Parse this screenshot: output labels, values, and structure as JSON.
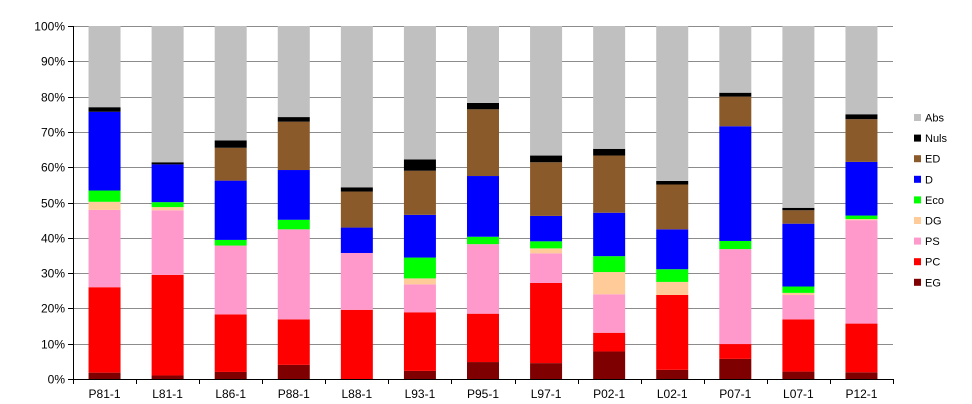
{
  "chart_data": {
    "type": "bar",
    "stacked": true,
    "percent": true,
    "categories": [
      "P81-1",
      "L81-1",
      "L86-1",
      "P88-1",
      "L88-1",
      "L93-1",
      "P95-1",
      "L97-1",
      "P02-1",
      "L02-1",
      "P07-1",
      "L07-1",
      "P12-1"
    ],
    "series": [
      {
        "name": "EG",
        "color": "#7f0000",
        "values": [
          1.8,
          1.0,
          2.0,
          4.0,
          0.0,
          2.3,
          4.8,
          4.5,
          7.8,
          2.6,
          5.7,
          2.1,
          1.9
        ]
      },
      {
        "name": "PC",
        "color": "#ff0000",
        "values": [
          24.2,
          28.5,
          16.3,
          12.9,
          19.6,
          16.6,
          13.7,
          22.7,
          5.3,
          21.2,
          4.2,
          14.8,
          13.8
        ]
      },
      {
        "name": "PS",
        "color": "#ff99cc",
        "values": [
          21.9,
          18.3,
          19.5,
          25.5,
          16.1,
          7.9,
          19.7,
          8.4,
          10.9,
          0.0,
          26.9,
          6.9,
          29.3
        ]
      },
      {
        "name": "DG",
        "color": "#ffcc99",
        "values": [
          2.3,
          0.9,
          0.0,
          0.0,
          0.0,
          1.7,
          0.0,
          1.4,
          6.3,
          3.7,
          0.0,
          0.6,
          0.3
        ]
      },
      {
        "name": "Eco",
        "color": "#00ff00",
        "values": [
          3.2,
          1.4,
          1.6,
          2.7,
          0.0,
          5.9,
          2.1,
          2.0,
          4.5,
          3.6,
          2.3,
          1.8,
          1.0
        ]
      },
      {
        "name": "D",
        "color": "#0000ff",
        "values": [
          22.3,
          10.7,
          16.8,
          14.1,
          7.2,
          12.1,
          17.2,
          7.2,
          12.3,
          11.3,
          32.5,
          17.8,
          15.2
        ]
      },
      {
        "name": "ED",
        "color": "#8b5a2b",
        "values": [
          0.0,
          0.0,
          9.3,
          13.7,
          10.2,
          12.5,
          18.9,
          15.2,
          16.2,
          12.7,
          8.4,
          3.8,
          12.1
        ]
      },
      {
        "name": "Nuls",
        "color": "#000000",
        "values": [
          1.3,
          0.6,
          2.1,
          1.3,
          1.2,
          3.2,
          1.8,
          1.9,
          1.9,
          1.0,
          1.1,
          0.7,
          1.4
        ]
      },
      {
        "name": "Abs",
        "color": "#c0c0c0",
        "values": [
          23.0,
          38.6,
          32.4,
          25.8,
          45.7,
          37.8,
          21.8,
          36.7,
          34.8,
          43.9,
          18.9,
          51.5,
          25.0
        ]
      }
    ],
    "legend_order": [
      "Abs",
      "Nuls",
      "ED",
      "D",
      "Eco",
      "DG",
      "PS",
      "PC",
      "EG"
    ],
    "y_ticks": [
      "0%",
      "10%",
      "20%",
      "30%",
      "40%",
      "50%",
      "60%",
      "70%",
      "80%",
      "90%",
      "100%"
    ],
    "ylim": [
      0,
      100
    ],
    "legend_position": "right",
    "grid": true,
    "title": "",
    "xlabel": "",
    "ylabel": ""
  }
}
